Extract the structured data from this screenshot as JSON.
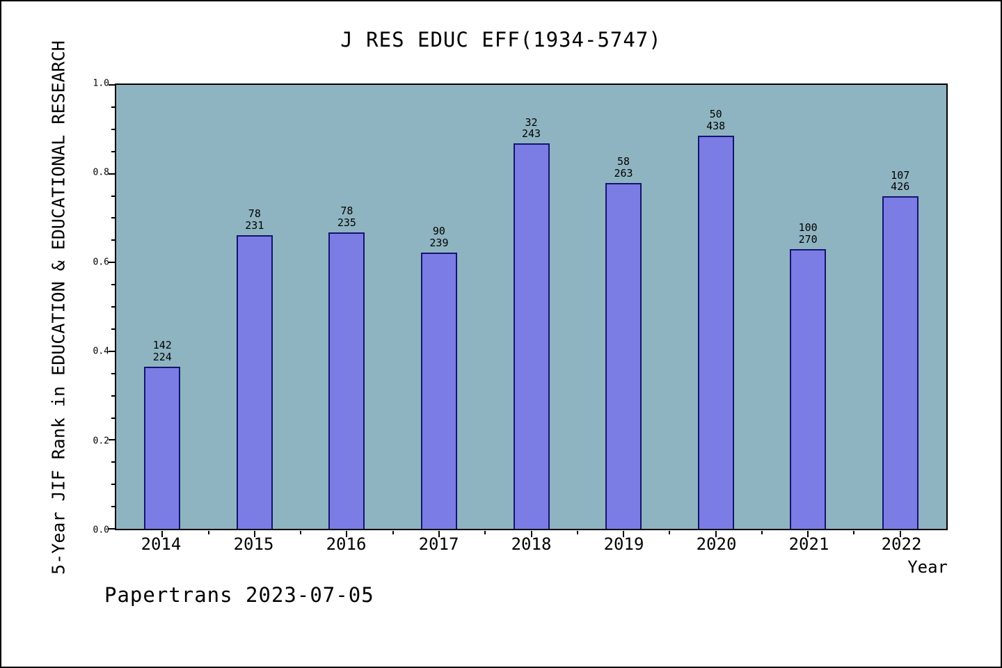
{
  "footer": {
    "text": "Papertrans 2023-07-05"
  },
  "chart_data": {
    "type": "bar",
    "title": "J RES EDUC EFF(1934-5747)",
    "xlabel": "Year",
    "ylabel": "5-Year JIF Rank in EDUCATION & EDUCATIONAL RESEARCH",
    "categories": [
      "2014",
      "2015",
      "2016",
      "2017",
      "2018",
      "2019",
      "2020",
      "2021",
      "2022"
    ],
    "values": [
      0.366,
      0.662,
      0.668,
      0.623,
      0.868,
      0.779,
      0.886,
      0.63,
      0.749
    ],
    "bar_labels": [
      {
        "rank": "142",
        "total": "224"
      },
      {
        "rank": "78",
        "total": "231"
      },
      {
        "rank": "78",
        "total": "235"
      },
      {
        "rank": "90",
        "total": "239"
      },
      {
        "rank": "32",
        "total": "243"
      },
      {
        "rank": "58",
        "total": "263"
      },
      {
        "rank": "50",
        "total": "438"
      },
      {
        "rank": "100",
        "total": "270"
      },
      {
        "rank": "107",
        "total": "426"
      }
    ],
    "ylim": [
      0,
      1.0
    ],
    "yticks": [
      "0.0",
      "0.2",
      "0.4",
      "0.6",
      "0.8",
      "1.0"
    ],
    "grid": false,
    "legend_position": "none",
    "colors": {
      "bar_fill": "#7b7ce4",
      "bar_edge": "#14146e",
      "plot_bg": "#8fb4c1",
      "page_bg": "#ffffff",
      "text": "#000000"
    }
  }
}
